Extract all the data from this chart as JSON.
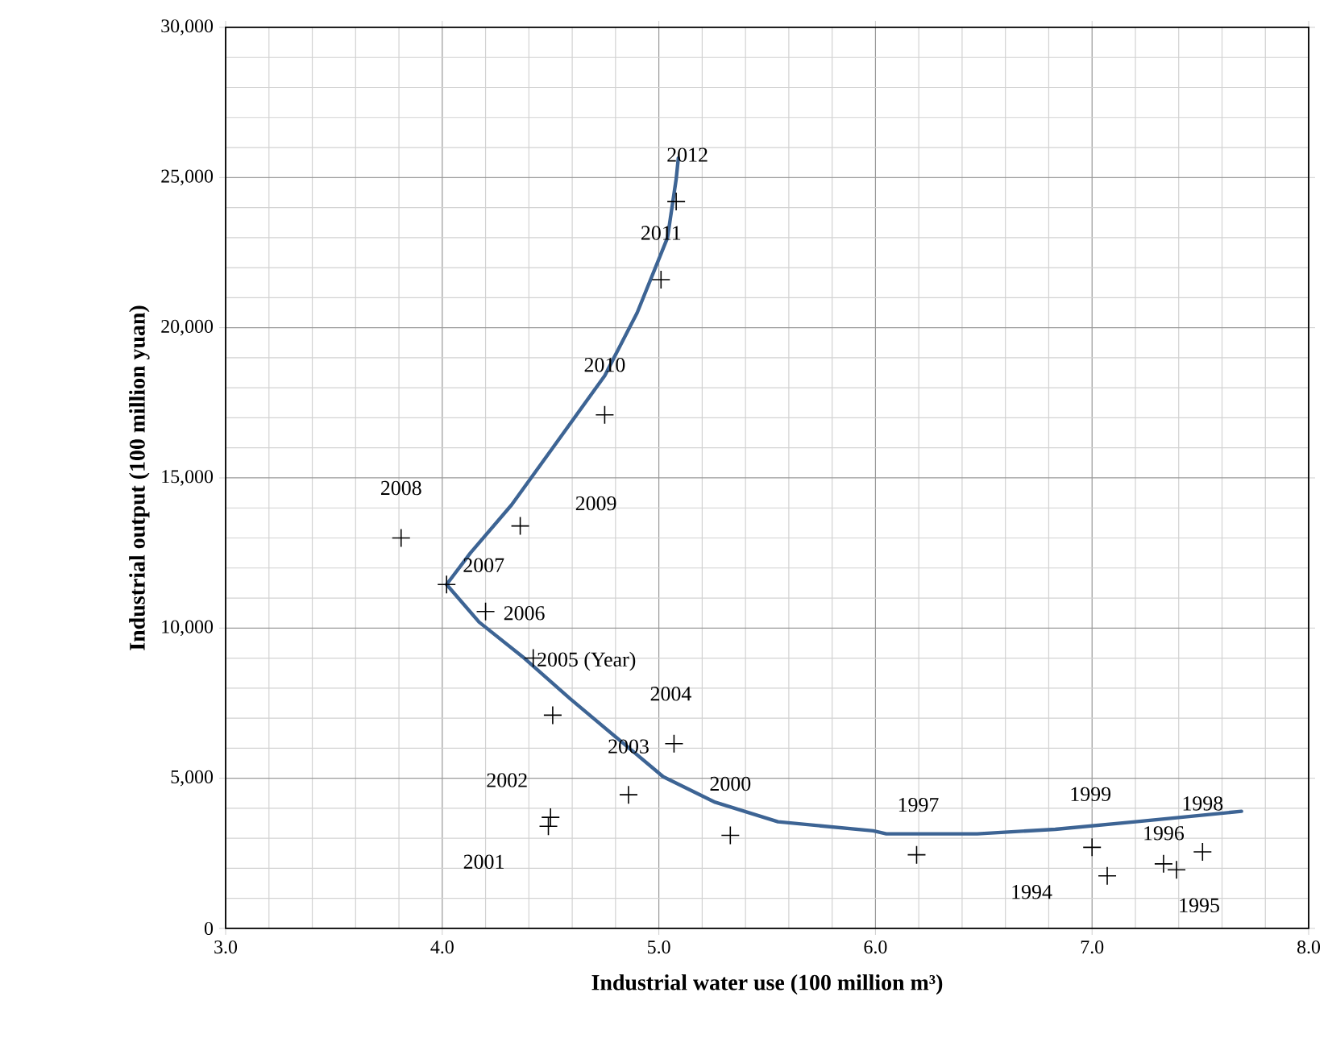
{
  "chart_data": {
    "type": "scatter",
    "xlabel": "Industrial water use (100 million m³)",
    "ylabel": "Industrial output (100 million yuan)",
    "xlim": [
      3,
      8
    ],
    "ylim": [
      0,
      30000
    ],
    "xticks": [
      {
        "value": 3,
        "label": "3.0"
      },
      {
        "value": 4,
        "label": "4.0"
      },
      {
        "value": 5,
        "label": "5.0"
      },
      {
        "value": 6,
        "label": "6.0"
      },
      {
        "value": 7,
        "label": "7.0"
      },
      {
        "value": 8,
        "label": "8.0"
      }
    ],
    "yticks": [
      {
        "value": 0,
        "label": "0"
      },
      {
        "value": 5000,
        "label": "5,000"
      },
      {
        "value": 10000,
        "label": "10,000"
      },
      {
        "value": 15000,
        "label": "15,000"
      },
      {
        "value": 20000,
        "label": "20,000"
      },
      {
        "value": 25000,
        "label": "25,000"
      },
      {
        "value": 30000,
        "label": "30,000"
      }
    ],
    "grid": true,
    "series": [
      {
        "marker": "cross",
        "color": "#000000",
        "x": [
          7.07,
          7.39,
          7.33,
          6.19,
          7.51,
          7.0,
          5.33,
          4.49,
          4.5,
          4.86,
          5.07,
          4.51,
          4.42,
          4.2,
          4.02,
          3.81,
          4.36,
          4.75,
          5.01,
          5.08
        ],
        "values": [
          1750,
          1950,
          2150,
          2450,
          2550,
          2700,
          3100,
          3400,
          3700,
          4450,
          6150,
          7100,
          9000,
          10550,
          11450,
          13000,
          13400,
          17100,
          21600,
          24200
        ]
      },
      {
        "type": "line",
        "marker": "none",
        "color": "#3d6494",
        "x": [
          7.69,
          7.2,
          6.83,
          6.47,
          6.05,
          5.99,
          5.55,
          5.26,
          5.02,
          4.83,
          4.59,
          4.37,
          4.17,
          4.02,
          4.13,
          4.32,
          4.51,
          4.75,
          4.9,
          5.04,
          5.08,
          5.09
        ],
        "values": [
          3900,
          3550,
          3300,
          3150,
          3150,
          3250,
          3550,
          4200,
          5050,
          6200,
          7650,
          9050,
          10200,
          11450,
          12500,
          14100,
          16000,
          18400,
          20500,
          23000,
          24950,
          25650
        ]
      }
    ],
    "annotations": [
      {
        "text": "2012",
        "x": 5.08,
        "y": 24200
      },
      {
        "text": "2011",
        "x": 5.01,
        "y": 21600
      },
      {
        "text": "2010",
        "x": 4.75,
        "y": 17100
      },
      {
        "text": "2009",
        "x": 4.36,
        "y": 13400
      },
      {
        "text": "2008",
        "x": 3.81,
        "y": 13000
      },
      {
        "text": "2007",
        "x": 4.02,
        "y": 11450
      },
      {
        "text": "2006",
        "x": 4.2,
        "y": 10550
      },
      {
        "text": "2005 (Year)",
        "x": 4.42,
        "y": 9000
      },
      {
        "text": "2004",
        "x": 5.07,
        "y": 6150
      },
      {
        "text": "2003",
        "x": 4.86,
        "y": 4450
      },
      {
        "text": "2002",
        "x": 4.5,
        "y": 3700
      },
      {
        "text": "2001",
        "x": 4.49,
        "y": 3400
      },
      {
        "text": "2000",
        "x": 5.33,
        "y": 3100
      },
      {
        "text": "1997",
        "x": 6.19,
        "y": 2450
      },
      {
        "text": "1999",
        "x": 7.0,
        "y": 2700
      },
      {
        "text": "1998",
        "x": 7.51,
        "y": 2550
      },
      {
        "text": "1996",
        "x": 7.33,
        "y": 2150
      },
      {
        "text": "1994",
        "x": 7.07,
        "y": 1750
      },
      {
        "text": "1995",
        "x": 7.39,
        "y": 1950
      }
    ]
  }
}
